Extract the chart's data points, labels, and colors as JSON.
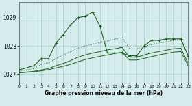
{
  "title": "Graphe pression niveau de la mer (hPa)",
  "bg_color": "#d4ecec",
  "grid_color": "#a8cccc",
  "line_color": "#1a5c1a",
  "xlim": [
    0,
    23
  ],
  "ylim": [
    1026.7,
    1029.55
  ],
  "yticks": [
    1027,
    1028,
    1029
  ],
  "xticks": [
    0,
    1,
    2,
    3,
    4,
    5,
    6,
    7,
    8,
    9,
    10,
    11,
    12,
    13,
    14,
    15,
    16,
    17,
    18,
    19,
    20,
    21,
    22,
    23
  ],
  "s_main_x": [
    0,
    2,
    3,
    4,
    5,
    6,
    7,
    8,
    9,
    10,
    11,
    12,
    13,
    14,
    15,
    16,
    17,
    18,
    19,
    20,
    21,
    22,
    23
  ],
  "s_main_y": [
    1027.15,
    1027.3,
    1027.55,
    1027.55,
    1028.1,
    1028.4,
    1028.75,
    1029.0,
    1029.05,
    1029.2,
    1028.7,
    1027.75,
    1027.75,
    1027.75,
    1027.65,
    1027.65,
    1028.0,
    1028.2,
    1028.2,
    1028.25,
    1028.25,
    1028.25,
    1027.65
  ],
  "s_mid_x": [
    0,
    2,
    3,
    4,
    5,
    6,
    7,
    8,
    9,
    10,
    11,
    12,
    13,
    14,
    15,
    16,
    17,
    18,
    19,
    20,
    21,
    22,
    23
  ],
  "s_mid_y": [
    1027.05,
    1027.1,
    1027.15,
    1027.2,
    1027.3,
    1027.38,
    1027.48,
    1027.6,
    1027.68,
    1027.75,
    1027.8,
    1027.86,
    1027.9,
    1027.95,
    1027.6,
    1027.6,
    1027.68,
    1027.75,
    1027.8,
    1027.85,
    1027.9,
    1027.92,
    1027.38
  ],
  "s_bot_x": [
    0,
    2,
    3,
    4,
    5,
    6,
    7,
    8,
    9,
    10,
    11,
    12,
    13,
    14,
    15,
    16,
    17,
    18,
    19,
    20,
    21,
    22,
    23
  ],
  "s_bot_y": [
    1027.05,
    1027.08,
    1027.12,
    1027.16,
    1027.22,
    1027.28,
    1027.35,
    1027.44,
    1027.52,
    1027.58,
    1027.63,
    1027.68,
    1027.73,
    1027.78,
    1027.5,
    1027.5,
    1027.56,
    1027.62,
    1027.68,
    1027.73,
    1027.78,
    1027.8,
    1027.3
  ],
  "s_dotted_x": [
    0,
    2,
    3,
    4,
    5,
    6,
    7,
    8,
    9,
    10,
    11,
    12,
    13,
    14,
    15,
    16,
    17,
    18,
    19,
    20,
    21,
    22,
    23
  ],
  "s_dotted_y": [
    1027.1,
    1027.2,
    1027.35,
    1027.4,
    1027.55,
    1027.68,
    1027.8,
    1027.92,
    1028.0,
    1028.07,
    1028.12,
    1028.18,
    1028.24,
    1028.3,
    1027.9,
    1027.9,
    1027.98,
    1028.05,
    1028.1,
    1028.15,
    1028.2,
    1028.22,
    1027.65
  ]
}
